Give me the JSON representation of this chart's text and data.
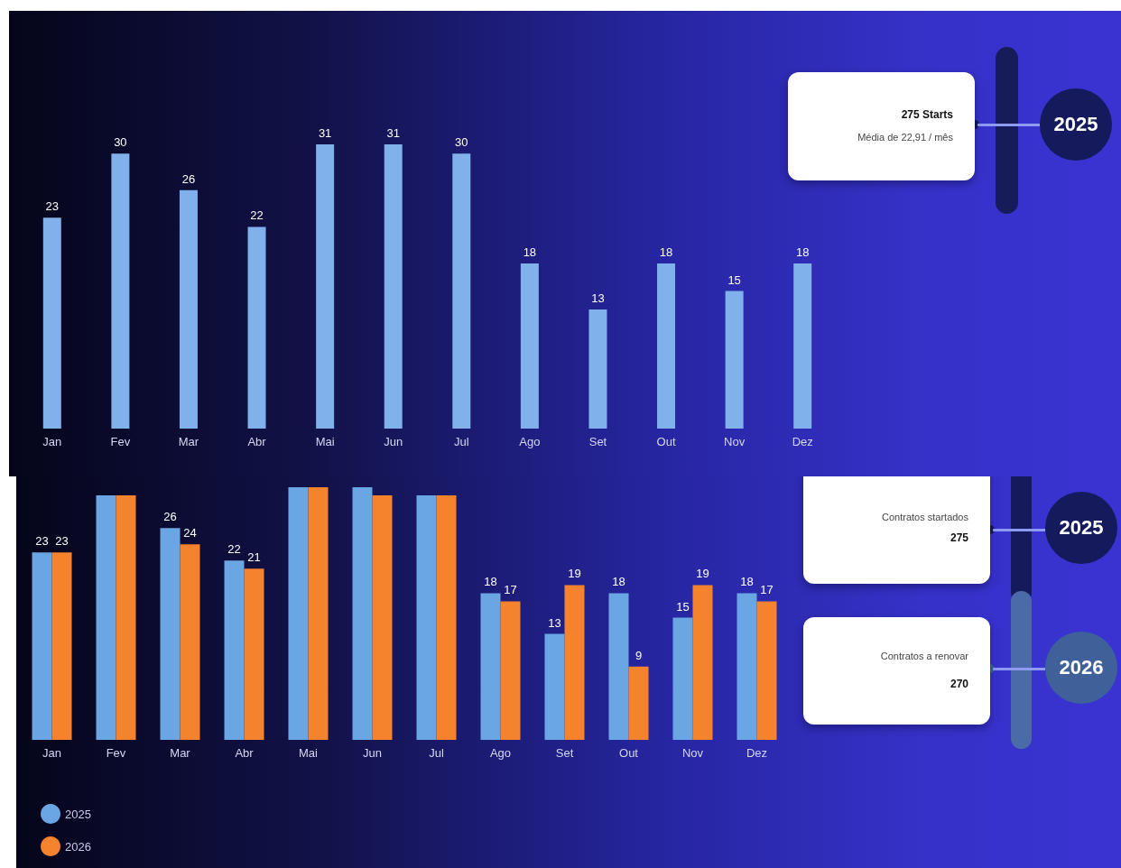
{
  "chart_data": [
    {
      "type": "bar",
      "categories": [
        "Jan",
        "Fev",
        "Mar",
        "Abr",
        "Mai",
        "Jun",
        "Jul",
        "Ago",
        "Set",
        "Out",
        "Nov",
        "Dez"
      ],
      "series": [
        {
          "color": "#80b1ea",
          "values": [
            23,
            30,
            26,
            22,
            31,
            31,
            30,
            18,
            13,
            18,
            15,
            18
          ]
        }
      ],
      "data_labels": true,
      "tick_labels": "x",
      "annotations": [
        "275 Starts",
        "Média de 22,91 / mês",
        "2025"
      ]
    },
    {
      "type": "bar",
      "categories": [
        "Jan",
        "Fev",
        "Mar",
        "Abr",
        "Mai",
        "Jun",
        "Jul",
        "Ago",
        "Set",
        "Out",
        "Nov",
        "Dez"
      ],
      "series": [
        {
          "name": "2025",
          "color": "#6aa6e4",
          "values": [
            23,
            30,
            26,
            22,
            31,
            31,
            30,
            18,
            13,
            18,
            15,
            18
          ],
          "value_labels": [
            "23",
            null,
            "26",
            "22",
            null,
            null,
            null,
            "18",
            "13",
            "18",
            "15",
            "18"
          ]
        },
        {
          "name": "2026",
          "color": "#f5832e",
          "values": [
            23,
            30,
            24,
            21,
            31,
            30,
            30,
            17,
            19,
            9,
            19,
            17
          ],
          "value_labels": [
            "23",
            null,
            "24",
            "21",
            null,
            null,
            null,
            "17",
            "19",
            "9",
            "19",
            "17"
          ]
        }
      ],
      "legend": "bottom left",
      "tick_labels": "x",
      "annotations": [
        "Contratos startados",
        "275",
        "2025",
        "Contratos a renovar",
        "270",
        "2026"
      ]
    }
  ]
}
